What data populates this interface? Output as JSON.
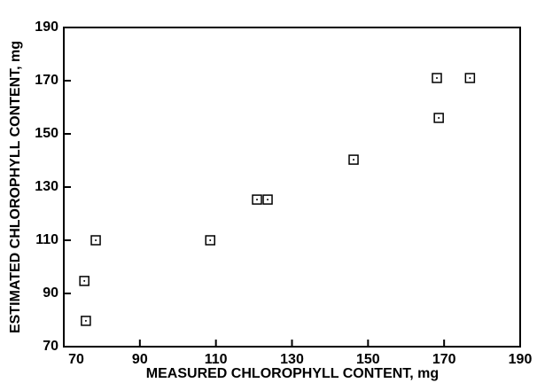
{
  "chart_data": {
    "type": "scatter",
    "x_label": "MEASURED CHLOROPHYLL CONTENT, mg",
    "y_label": "ESTIMATED CHLOROPHYLL CONTENT, mg",
    "x": [
      75.4,
      75.8,
      78.4,
      108.5,
      120.8,
      123.6,
      146.2,
      168.1,
      168.6,
      176.8
    ],
    "values": [
      94.7,
      79.7,
      110,
      110,
      125.3,
      125.3,
      140.3,
      171,
      156,
      171
    ],
    "color": "#000000",
    "xlim": [
      70,
      190
    ],
    "xticks": [
      70,
      90,
      110,
      130,
      150,
      170,
      190
    ],
    "ylim": [
      70,
      190
    ],
    "yticks": [
      70,
      90,
      110,
      130,
      150,
      170,
      190
    ],
    "grid": false
  }
}
